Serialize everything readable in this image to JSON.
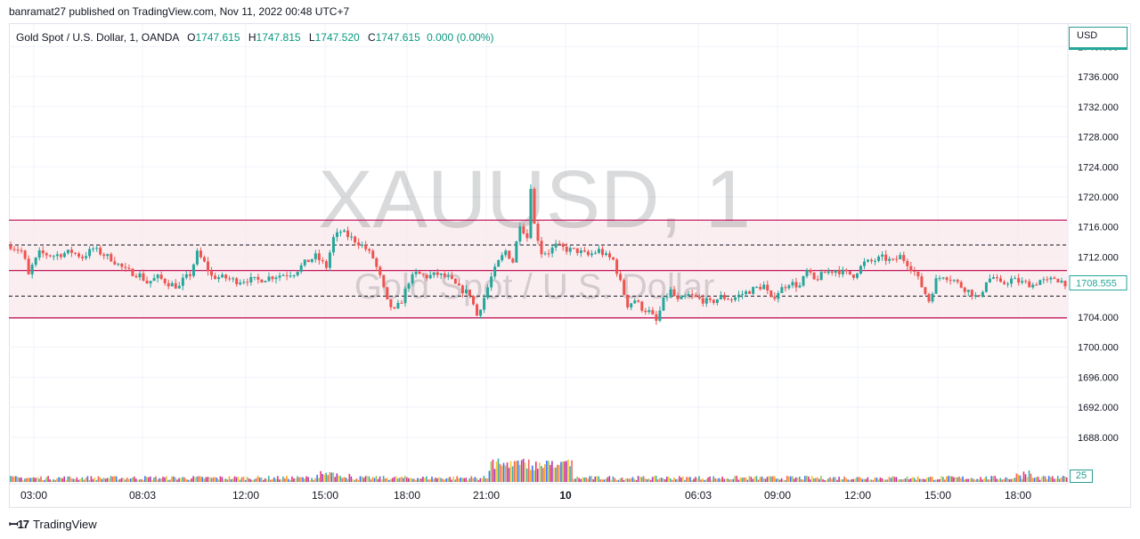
{
  "attribution": "banramat27 published on TradingView.com, Nov 11, 2022 00:48 UTC+7",
  "legend": {
    "symbol": "Gold Spot / U.S. Dollar, 1, OANDA",
    "open_k": "O",
    "open_v": "1747.615",
    "high_k": "H",
    "high_v": "1747.815",
    "low_k": "L",
    "low_v": "1747.520",
    "close_k": "C",
    "close_v": "1747.615",
    "change": "0.000 (0.00%)"
  },
  "currency": "USD",
  "watermark": {
    "ticker": "XAUUSD, 1",
    "name": "Gold Spot / U.S. Dollar"
  },
  "volume_badge": "25",
  "branding": "TradingView",
  "colors": {
    "up": "#26a69a",
    "down": "#ef5350",
    "band_line": "#c2185b",
    "band_fill": "#f8e8ec",
    "grid": "#f0f3fa"
  },
  "chart_data": {
    "type": "candlestick",
    "ylim": [
      1685.5,
      1743.0
    ],
    "y_ticks": [
      1740,
      1736,
      1732,
      1728,
      1724,
      1720,
      1716,
      1712,
      1708,
      1704,
      1700,
      1696,
      1692,
      1688
    ],
    "y_tick_labels": [
      "1740.000",
      "1736.000",
      "1732.000",
      "1728.000",
      "1724.000",
      "1720.000",
      "1716.000",
      "1712.000",
      "1708.000",
      "1704.000",
      "1700.000",
      "1696.000",
      "1692.000",
      "1688.000"
    ],
    "x_ticks": [
      "03:00",
      "08:03",
      "12:00",
      "15:00",
      "18:00",
      "21:00",
      "10",
      "06:03",
      "09:00",
      "12:00",
      "15:00",
      "18:00"
    ],
    "last_price": 1708.555,
    "last_price_label": "1708.555",
    "horizontal_levels": [
      {
        "price": 1716.9,
        "style": "solid"
      },
      {
        "price": 1713.6,
        "style": "dashed"
      },
      {
        "price": 1710.2,
        "style": "solid"
      },
      {
        "price": 1706.8,
        "style": "dashed"
      },
      {
        "price": 1703.9,
        "style": "solid"
      }
    ],
    "shaded_band": [
      1703.9,
      1716.9
    ],
    "close_path": [
      [
        0,
        1713.5
      ],
      [
        3,
        1712.8
      ],
      [
        4,
        1711.5
      ],
      [
        5,
        1709.5
      ],
      [
        6,
        1710.8
      ],
      [
        8,
        1712.5
      ],
      [
        12,
        1712.2
      ],
      [
        17,
        1712.7
      ],
      [
        20,
        1712.0
      ],
      [
        23,
        1713.1
      ],
      [
        26,
        1712.3
      ],
      [
        28,
        1711.8
      ],
      [
        32,
        1710.2
      ],
      [
        36,
        1709.6
      ],
      [
        38,
        1708.6
      ],
      [
        41,
        1709.3
      ],
      [
        44,
        1708.5
      ],
      [
        47,
        1708.0
      ],
      [
        48,
        1708.9
      ],
      [
        50,
        1709.7
      ],
      [
        52,
        1712.5
      ],
      [
        54,
        1711.2
      ],
      [
        56,
        1709.4
      ],
      [
        60,
        1709.2
      ],
      [
        63,
        1708.8
      ],
      [
        66,
        1709.0
      ],
      [
        69,
        1708.9
      ],
      [
        72,
        1709.3
      ],
      [
        75,
        1709.6
      ],
      [
        79,
        1709.9
      ],
      [
        82,
        1711.2
      ],
      [
        85,
        1712.1
      ],
      [
        88,
        1710.7
      ],
      [
        90,
        1714.5
      ],
      [
        92,
        1715.4
      ],
      [
        94,
        1714.8
      ],
      [
        97,
        1713.9
      ],
      [
        99,
        1713.1
      ],
      [
        101,
        1711.9
      ],
      [
        103,
        1709.3
      ],
      [
        105,
        1706.0
      ],
      [
        107,
        1704.8
      ],
      [
        109,
        1706.2
      ],
      [
        111,
        1708.8
      ],
      [
        113,
        1709.8
      ],
      [
        116,
        1709.4
      ],
      [
        119,
        1709.7
      ],
      [
        122,
        1709.2
      ],
      [
        125,
        1707.8
      ],
      [
        128,
        1707.1
      ],
      [
        130,
        1704.2
      ],
      [
        132,
        1706.6
      ],
      [
        134,
        1709.3
      ],
      [
        136,
        1711.3
      ],
      [
        138,
        1712.8
      ],
      [
        140,
        1711.4
      ],
      [
        142,
        1716.5
      ],
      [
        144,
        1714.6
      ],
      [
        145,
        1721.5
      ],
      [
        146,
        1716.3
      ],
      [
        148,
        1712.6
      ],
      [
        150,
        1712.7
      ],
      [
        152,
        1713.5
      ],
      [
        155,
        1713.0
      ],
      [
        158,
        1712.8
      ],
      [
        161,
        1712.2
      ],
      [
        164,
        1712.9
      ],
      [
        166,
        1712.1
      ],
      [
        168,
        1711.6
      ],
      [
        170,
        1708.6
      ],
      [
        172,
        1705.6
      ],
      [
        174,
        1706.3
      ],
      [
        176,
        1705.2
      ],
      [
        178,
        1704.7
      ],
      [
        180,
        1703.4
      ],
      [
        182,
        1706.2
      ],
      [
        184,
        1707.5
      ],
      [
        186,
        1706.1
      ],
      [
        189,
        1706.9
      ],
      [
        192,
        1706.4
      ],
      [
        195,
        1705.9
      ],
      [
        198,
        1706.7
      ],
      [
        201,
        1706.4
      ],
      [
        204,
        1707.1
      ],
      [
        207,
        1707.7
      ],
      [
        210,
        1708.2
      ],
      [
        212,
        1706.3
      ],
      [
        214,
        1707.4
      ],
      [
        217,
        1708.6
      ],
      [
        220,
        1708.1
      ],
      [
        222,
        1710.1
      ],
      [
        224,
        1708.9
      ],
      [
        227,
        1709.9
      ],
      [
        230,
        1710.3
      ],
      [
        233,
        1709.8
      ],
      [
        235,
        1709.6
      ],
      [
        238,
        1711.2
      ],
      [
        240,
        1711.4
      ],
      [
        243,
        1711.9
      ],
      [
        246,
        1711.4
      ],
      [
        248,
        1712.1
      ],
      [
        250,
        1711.2
      ],
      [
        252,
        1710.0
      ],
      [
        254,
        1708.1
      ],
      [
        256,
        1706.2
      ],
      [
        258,
        1708.9
      ],
      [
        260,
        1709.6
      ],
      [
        263,
        1708.9
      ],
      [
        265,
        1708.1
      ],
      [
        267,
        1707.5
      ],
      [
        270,
        1706.4
      ],
      [
        272,
        1708.9
      ],
      [
        274,
        1709.3
      ],
      [
        276,
        1708.3
      ],
      [
        279,
        1709.0
      ],
      [
        282,
        1708.6
      ],
      [
        285,
        1708.3
      ],
      [
        287,
        1708.9
      ],
      [
        289,
        1708.7
      ],
      [
        291,
        1709.2
      ],
      [
        294,
        1708.555
      ]
    ],
    "volume_spike_bar_index": 145
  }
}
